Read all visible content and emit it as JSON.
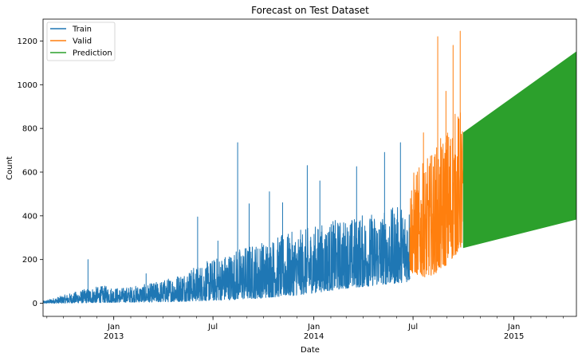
{
  "chart_data": {
    "type": "line",
    "title": "Forecast on Test Dataset",
    "xlabel": "Date",
    "ylabel": "Count",
    "xlim": [
      "2012-08-25",
      "2015-04-25"
    ],
    "ylim": [
      -60,
      1300
    ],
    "grid": false,
    "legend_position": "top-left",
    "y_ticks": [
      0,
      200,
      400,
      600,
      800,
      1000,
      1200
    ],
    "x_ticks": [
      {
        "date": "2013-01-01",
        "label": "Jan",
        "sublabel": "2013"
      },
      {
        "date": "2013-07-01",
        "label": "Jul",
        "sublabel": ""
      },
      {
        "date": "2014-01-01",
        "label": "Jan",
        "sublabel": "2014"
      },
      {
        "date": "2014-07-01",
        "label": "Jul",
        "sublabel": ""
      },
      {
        "date": "2015-01-01",
        "label": "Jan",
        "sublabel": "2015"
      }
    ],
    "series": [
      {
        "name": "Train",
        "color": "#1f77b4",
        "start": "2012-08-25",
        "end": "2014-06-25",
        "low": [
          0,
          0,
          1,
          2,
          3,
          4,
          5,
          5,
          6,
          8,
          10,
          12,
          15,
          18,
          22,
          28,
          32,
          40,
          50,
          60,
          70,
          75,
          85,
          90,
          100
        ],
        "high": [
          10,
          30,
          50,
          70,
          80,
          70,
          80,
          90,
          110,
          140,
          170,
          200,
          230,
          260,
          280,
          300,
          320,
          340,
          360,
          380,
          390,
          410,
          420,
          440,
          460
        ],
        "spikes": [
          [
            "2012-11-15",
            200
          ],
          [
            "2013-03-01",
            135
          ],
          [
            "2013-06-03",
            395
          ],
          [
            "2013-07-10",
            285
          ],
          [
            "2013-08-15",
            735
          ],
          [
            "2013-09-05",
            455
          ],
          [
            "2013-10-12",
            510
          ],
          [
            "2013-11-05",
            460
          ],
          [
            "2013-12-20",
            630
          ],
          [
            "2014-01-12",
            560
          ],
          [
            "2014-03-20",
            625
          ],
          [
            "2014-05-10",
            690
          ],
          [
            "2014-06-08",
            735
          ]
        ]
      },
      {
        "name": "Valid",
        "color": "#ff7f0e",
        "start": "2014-06-25",
        "end": "2014-09-30",
        "low": [
          140,
          130,
          120,
          130,
          150,
          180,
          220,
          260
        ],
        "high": [
          600,
          620,
          650,
          700,
          750,
          820,
          880,
          900
        ],
        "spikes": [
          [
            "2014-07-20",
            780
          ],
          [
            "2014-08-15",
            1220
          ],
          [
            "2014-08-30",
            970
          ],
          [
            "2014-09-12",
            1180
          ],
          [
            "2014-09-25",
            1245
          ]
        ]
      },
      {
        "name": "Prediction",
        "color": "#2ca02c",
        "start": "2014-10-01",
        "end": "2015-04-25",
        "low_start": 255,
        "low_end": 385,
        "high_start": 780,
        "high_end": 1150
      }
    ]
  }
}
